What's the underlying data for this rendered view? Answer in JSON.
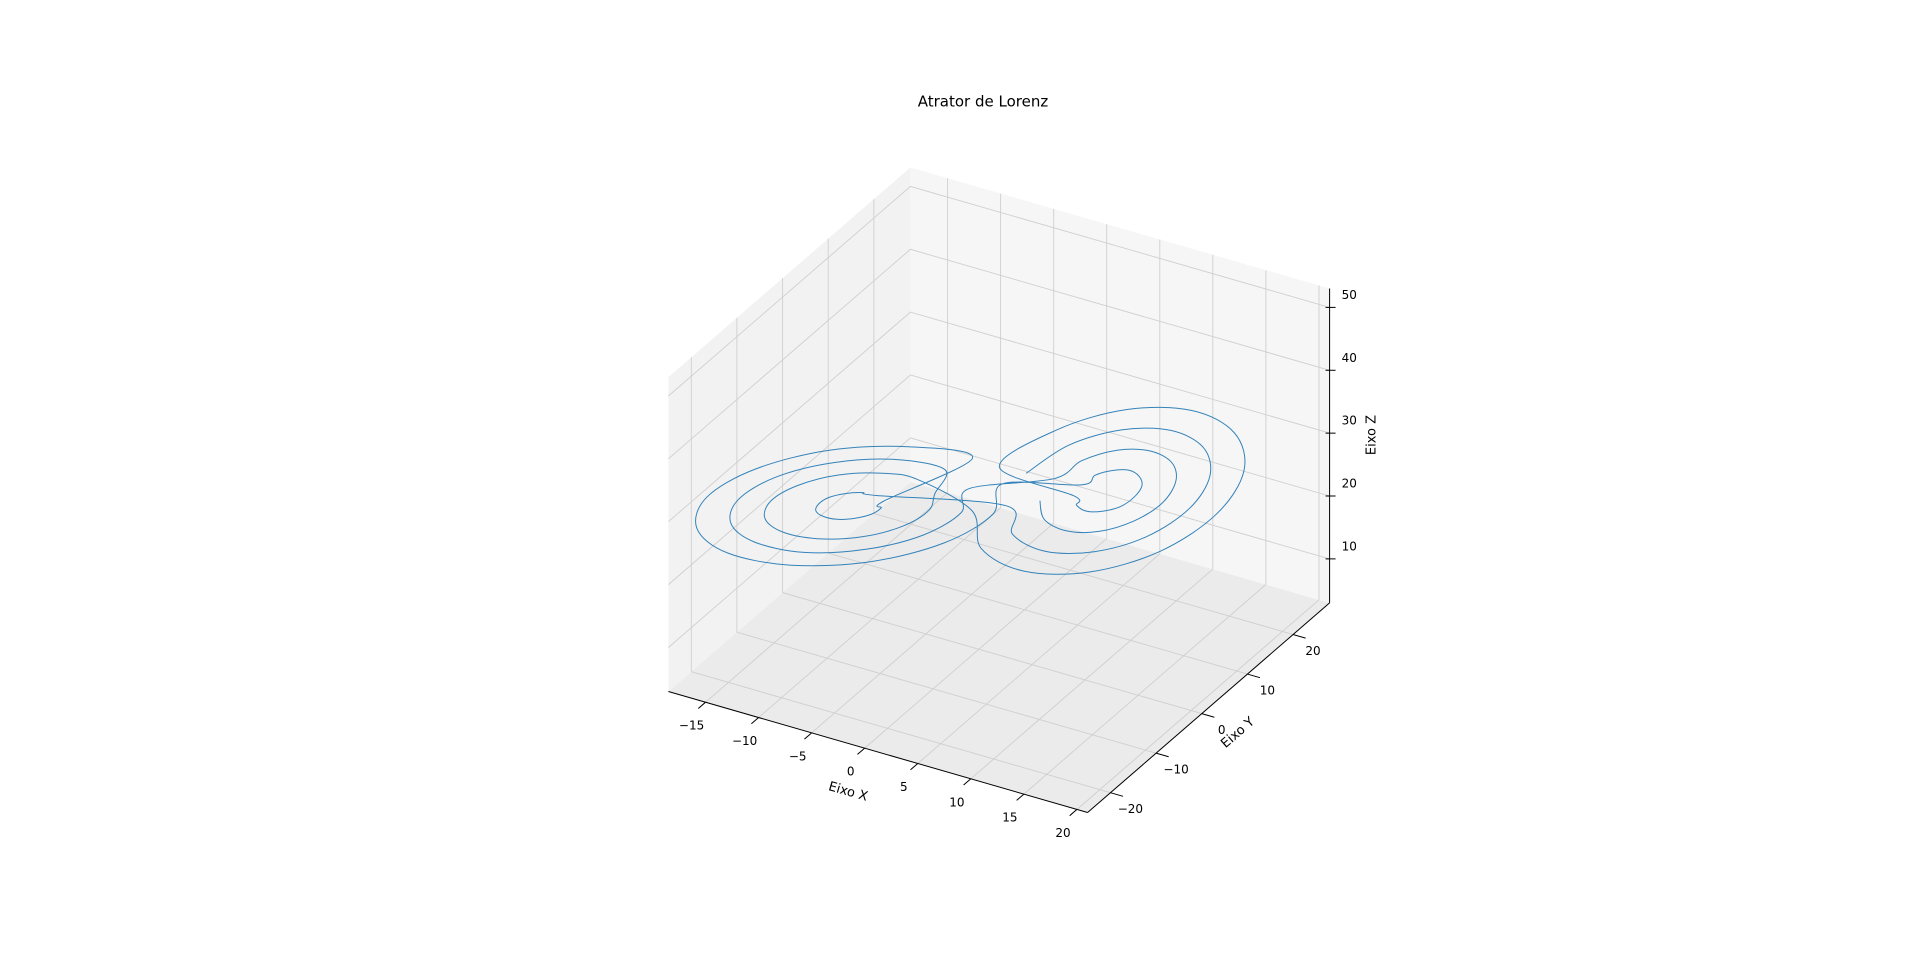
{
  "chart_data": {
    "type": "line3d",
    "title": "Atrator de Lorenz",
    "xlabel": "Eixo X",
    "ylabel": "Eixo Y",
    "zlabel": "Eixo Z",
    "color": "#1f77b4",
    "xlim": [
      -18.5,
      21
    ],
    "ylim": [
      -25,
      28
    ],
    "zlim": [
      3,
      53
    ],
    "xticks": [
      {
        "value": -15,
        "label": "−15"
      },
      {
        "value": -10,
        "label": "−10"
      },
      {
        "value": -5,
        "label": "−5"
      },
      0,
      5,
      10,
      15,
      20
    ],
    "yticks": [
      {
        "value": -20,
        "label": "−20"
      },
      {
        "value": -10,
        "label": "−10"
      },
      0,
      10,
      20
    ],
    "zticks": [
      10,
      20,
      30,
      40,
      50
    ],
    "x": [
      4.5,
      5.0,
      6.5,
      8.5,
      10.5,
      12.0,
      12.5,
      12.0,
      10.5,
      8.5,
      6.5,
      5.0,
      -1.5,
      -2.4,
      -5.0,
      -8.5,
      -12.0,
      -14.6,
      -15.5,
      -14.6,
      -12.0,
      -8.5,
      -5.0,
      -2.4,
      -3.5,
      -4.2,
      -6.0,
      -8.5,
      -11.0,
      -12.8,
      -13.5,
      -12.8,
      -11.0,
      -8.5,
      -6.0,
      -4.2,
      0.5,
      1.6,
      4.5,
      8.5,
      12.5,
      15.4,
      16.5,
      15.4,
      12.5,
      8.5,
      4.5,
      1.6,
      6.5,
      6.8,
      7.5,
      8.5,
      9.5,
      10.2,
      10.5,
      10.2,
      9.5,
      8.5,
      7.5,
      6.8,
      0.5,
      -0.7,
      -4.0,
      -8.5,
      -13.0,
      -16.3,
      -17.5,
      -16.3,
      -13.0,
      -8.5,
      -4.0,
      -0.7,
      -6.5,
      -6.8,
      -7.5,
      -8.5,
      -9.5,
      -10.2,
      -10.5,
      -10.2,
      -9.5,
      -8.5,
      -7.5,
      -6.8,
      2.5,
      3.3,
      5.5,
      8.5,
      11.5,
      13.7,
      14.5,
      13.7,
      11.5,
      8.5,
      5.5,
      3.3
    ],
    "y": [
      2.9,
      2.7,
      4.0,
      6.5,
      9.6,
      12.3,
      14.1,
      14.3,
      13.0,
      10.5,
      7.4,
      4.7,
      1.3,
      1.7,
      -0.6,
      -5.0,
      -10.4,
      -15.2,
      -18.3,
      -18.7,
      -16.4,
      -12.0,
      -6.6,
      -1.8,
      -1.5,
      -1.2,
      -2.8,
      -6.0,
      -9.8,
      -13.3,
      -15.5,
      -15.8,
      -14.2,
      -11.0,
      -7.2,
      -3.7,
      -2.7,
      -3.2,
      -0.6,
      4.5,
      10.6,
      16.2,
      19.7,
      20.2,
      17.6,
      12.5,
      6.4,
      0.8,
      5.7,
      5.6,
      6.2,
      7.5,
      9.0,
      10.4,
      11.3,
      11.4,
      10.8,
      9.5,
      8.0,
      6.6,
      4.1,
      4.7,
      1.7,
      -4.0,
      -10.9,
      -17.2,
      -21.1,
      -21.7,
      -18.7,
      -13.0,
      -6.1,
      0.2,
      -5.7,
      -5.6,
      -6.2,
      -7.5,
      -9.0,
      -10.4,
      -11.3,
      -11.4,
      -10.8,
      -9.5,
      -8.0,
      -6.6,
      0.1,
      -0.3,
      1.7,
      5.5,
      10.1,
      14.3,
      16.9,
      17.3,
      15.3,
      11.5,
      6.9,
      2.7
    ],
    "z": [
      27,
      24.4,
      22.5,
      21.8,
      22.5,
      24.4,
      27,
      29.6,
      31.5,
      32.2,
      31.5,
      29.6,
      27,
      22.5,
      19.1,
      17.9,
      19.1,
      22.5,
      27,
      31.5,
      34.9,
      36.1,
      34.9,
      31.5,
      27,
      23.8,
      21.4,
      20.5,
      21.4,
      23.8,
      27,
      30.3,
      32.6,
      33.5,
      32.6,
      30.3,
      27,
      21.8,
      18.0,
      16.6,
      18.0,
      21.8,
      27,
      32.2,
      36.0,
      37.4,
      36.0,
      32.2,
      27,
      25.7,
      24.7,
      24.4,
      24.7,
      25.7,
      27,
      28.3,
      29.3,
      29.6,
      29.3,
      28.3,
      27,
      21.2,
      16.9,
      15.3,
      16.9,
      21.2,
      27,
      32.9,
      37.1,
      38.7,
      37.1,
      32.9,
      27,
      25.7,
      24.7,
      24.4,
      24.7,
      25.7,
      27,
      28.3,
      29.3,
      29.6,
      29.3,
      28.3,
      27,
      23.1,
      20.2,
      19.2,
      20.2,
      23.1,
      27,
      30.9,
      33.8,
      34.8,
      33.8,
      30.9
    ]
  }
}
